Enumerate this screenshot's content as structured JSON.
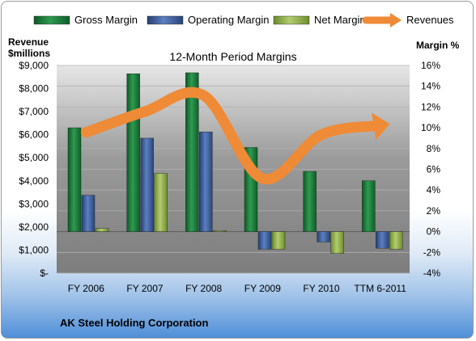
{
  "chart_data": {
    "type": "bar",
    "title": "12-Month Period Margins",
    "company": "AK Steel Holding Corporation",
    "left_axis_title_line1": "Revenue",
    "left_axis_title_line2": "$millions",
    "right_axis_title": "Margin %",
    "categories": [
      "FY 2006",
      "FY 2007",
      "FY 2008",
      "FY 2009",
      "FY 2010",
      "TTM 6-2011"
    ],
    "ylim_left": [
      0,
      9000
    ],
    "yticks_left": [
      "$-",
      "$1,000",
      "$2,000",
      "$3,000",
      "$4,000",
      "$5,000",
      "$6,000",
      "$7,000",
      "$8,000",
      "$9,000"
    ],
    "ylim_right": [
      -4,
      16
    ],
    "yticks_right": [
      "-4%",
      "-2%",
      "0%",
      "2%",
      "4%",
      "6%",
      "8%",
      "10%",
      "12%",
      "14%",
      "16%"
    ],
    "grid": true,
    "legend_position": "top",
    "series": [
      {
        "name": "Gross Margin",
        "axis": "right",
        "kind": "bar",
        "color": "#1e7a3c",
        "values": [
          10.0,
          15.2,
          15.3,
          8.1,
          5.8,
          4.9
        ]
      },
      {
        "name": "Operating Margin",
        "axis": "right",
        "kind": "bar",
        "color": "#3c5f9c",
        "values": [
          3.5,
          9.0,
          9.6,
          -1.7,
          -1.0,
          -1.6
        ]
      },
      {
        "name": "Net Margin",
        "axis": "right",
        "kind": "bar",
        "color": "#8fae4a",
        "values": [
          0.3,
          5.6,
          0.1,
          -1.7,
          -2.1,
          -1.7
        ]
      },
      {
        "name": "Revenues",
        "axis": "left",
        "kind": "line",
        "color": "#ef8a36",
        "values": [
          6100,
          7000,
          7700,
          4100,
          6000,
          6400
        ]
      }
    ]
  }
}
